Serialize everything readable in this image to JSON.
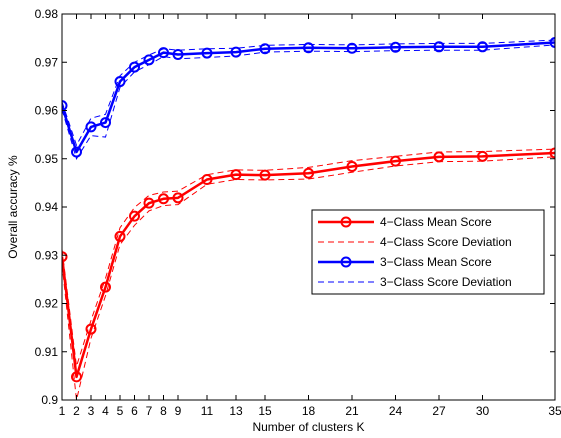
{
  "chart_data": {
    "type": "line",
    "xlabel": "Number of clusters K",
    "ylabel": "Overall accuracy %",
    "xlim": [
      1,
      35
    ],
    "ylim": [
      0.9,
      0.98
    ],
    "x": [
      1,
      2,
      3,
      4,
      5,
      6,
      7,
      8,
      9,
      11,
      13,
      15,
      18,
      21,
      24,
      27,
      30,
      35
    ],
    "x_tick_labels": [
      "1",
      "2",
      "3",
      "4",
      "5",
      "6",
      "7",
      "8",
      "9",
      "11",
      "13",
      "15",
      "18",
      "21",
      "24",
      "27",
      "30",
      "35"
    ],
    "y_ticks": [
      0.9,
      0.91,
      0.92,
      0.93,
      0.94,
      0.95,
      0.96,
      0.97,
      0.98
    ],
    "y_tick_labels": [
      "0.9",
      "0.91",
      "0.92",
      "0.93",
      "0.94",
      "0.95",
      "0.96",
      "0.97",
      "0.98"
    ],
    "grid": false,
    "legend_position": "right",
    "series": [
      {
        "name": "4−Class Mean Score",
        "style": "solid-circle",
        "color": "#ff0000",
        "values": [
          0.9297,
          0.9048,
          0.9147,
          0.9234,
          0.9339,
          0.9381,
          0.9408,
          0.9417,
          0.9419,
          0.9457,
          0.9467,
          0.9466,
          0.947,
          0.9484,
          0.9495,
          0.9504,
          0.9505,
          0.9512
        ]
      },
      {
        "name": "4−Class Score Deviation",
        "style": "dashed-band",
        "color": "#ff0000",
        "upper": [
          0.9312,
          0.907,
          0.9165,
          0.9252,
          0.9357,
          0.9399,
          0.9424,
          0.9431,
          0.9433,
          0.9467,
          0.9477,
          0.9476,
          0.9482,
          0.9496,
          0.9505,
          0.9514,
          0.9515,
          0.952
        ],
        "lower": [
          0.9282,
          0.9,
          0.9128,
          0.9216,
          0.9322,
          0.9362,
          0.9392,
          0.9403,
          0.9405,
          0.9447,
          0.9457,
          0.9456,
          0.9458,
          0.9472,
          0.9485,
          0.9494,
          0.9495,
          0.9504
        ]
      },
      {
        "name": "3−Class Mean Score",
        "style": "solid-circle",
        "color": "#0000ff",
        "values": [
          0.961,
          0.9514,
          0.9566,
          0.9575,
          0.966,
          0.969,
          0.9705,
          0.972,
          0.9716,
          0.9719,
          0.9721,
          0.9728,
          0.973,
          0.9729,
          0.9731,
          0.9732,
          0.9732,
          0.9741
        ]
      },
      {
        "name": "3−Class Score Deviation",
        "style": "dashed-band",
        "color": "#0000ff",
        "upper": [
          0.9618,
          0.9528,
          0.9584,
          0.9592,
          0.9672,
          0.97,
          0.9715,
          0.9728,
          0.9725,
          0.9728,
          0.9729,
          0.9735,
          0.9737,
          0.9736,
          0.9738,
          0.9739,
          0.9739,
          0.9746
        ],
        "lower": [
          0.9602,
          0.95,
          0.9548,
          0.9545,
          0.9648,
          0.968,
          0.9695,
          0.9712,
          0.9707,
          0.971,
          0.9713,
          0.9721,
          0.9723,
          0.9722,
          0.9724,
          0.9725,
          0.9725,
          0.9736
        ]
      }
    ]
  }
}
